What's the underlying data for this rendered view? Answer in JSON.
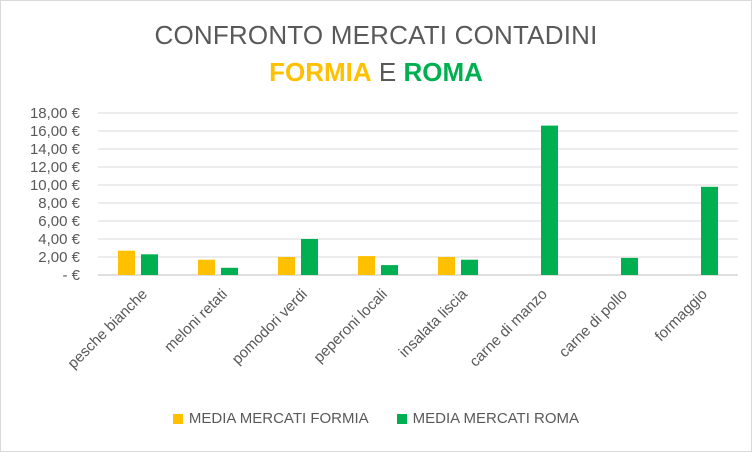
{
  "chart_data": {
    "type": "bar",
    "title": "CONFRONTO MERCATI CONTADINI",
    "subtitle_parts": {
      "left": "FORMIA",
      "middle": "E",
      "right": "ROMA"
    },
    "categories": [
      "pesche bianche",
      "meloni retati",
      "pomodori verdi",
      "peperoni locali",
      "insalata liscia",
      "carne di manzo",
      "carne di pollo",
      "formaggio"
    ],
    "series": [
      {
        "name": "MEDIA MERCATI FORMIA",
        "color": "#ffc000",
        "values": [
          2.7,
          1.7,
          2.0,
          2.1,
          2.0,
          null,
          null,
          null
        ]
      },
      {
        "name": "MEDIA MERCATI ROMA",
        "color": "#00b050",
        "values": [
          2.3,
          0.8,
          4.0,
          1.1,
          1.7,
          16.6,
          1.9,
          9.8
        ]
      }
    ],
    "ylim": [
      0,
      18
    ],
    "ytick_step": 2,
    "ytick_labels": [
      "-  €",
      "2,00 €",
      "4,00 €",
      "6,00 €",
      "8,00 €",
      "10,00 €",
      "12,00 €",
      "14,00 €",
      "16,00 €",
      "18,00 €"
    ],
    "grid": true,
    "legend_position": "bottom"
  }
}
